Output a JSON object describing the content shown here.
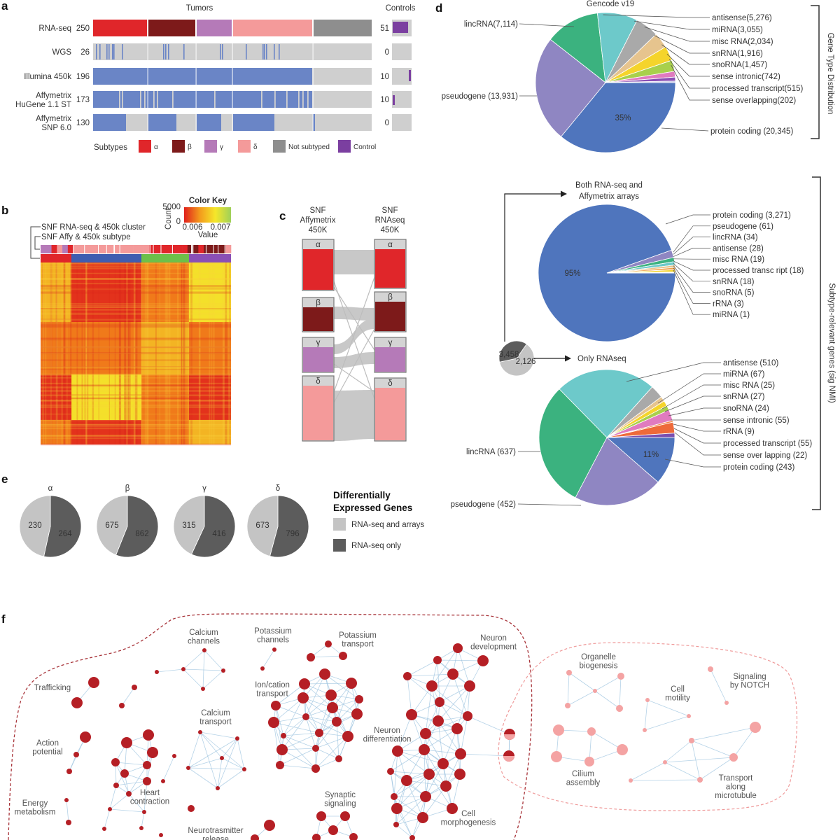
{
  "panel_labels": {
    "a": "a",
    "b": "b",
    "c": "c",
    "d": "d",
    "e": "e",
    "f": "f"
  },
  "colors": {
    "alpha": "#e0262a",
    "beta": "#7d1a1a",
    "gamma": "#b57ab8",
    "delta": "#f49a9a",
    "not_subtyped": "#8e8e8e",
    "control": "#7b3fa0",
    "assay_present": "#6a85c6",
    "assay_absent": "#cfcfcf",
    "cluster_1": "#e0262a",
    "cluster_2": "#3f5db0",
    "cluster_3": "#6cc04a",
    "cluster_4": "#8a4fb5",
    "network_dark": "#b51f25",
    "network_light": "#f4a3a3",
    "network_edge": "#9cc3df",
    "rna_seq_and_arrays": "#c4c4c4",
    "rna_seq_only": "#5c5c5c"
  },
  "panel_a": {
    "tumors_title": "Tumors",
    "controls_title": "Controls",
    "rows": [
      {
        "name_lines": [
          "RNA-seq"
        ],
        "count": "250",
        "control_count": "51"
      },
      {
        "name_lines": [
          "WGS"
        ],
        "count": "26",
        "control_count": "0"
      },
      {
        "name_lines": [
          "Illumina 450k"
        ],
        "count": "196",
        "control_count": "10"
      },
      {
        "name_lines": [
          "Affymetrix",
          "HuGene 1.1 ST"
        ],
        "count": "173",
        "control_count": "10"
      },
      {
        "name_lines": [
          "Affymetrix",
          "SNP 6.0"
        ],
        "count": "130",
        "control_count": "0"
      }
    ],
    "legend": {
      "title": "Subtypes",
      "items": [
        {
          "label": "α",
          "color": "#e0262a"
        },
        {
          "label": "β",
          "color": "#7d1a1a"
        },
        {
          "label": "γ",
          "color": "#b57ab8"
        },
        {
          "label": "δ",
          "color": "#f49a9a"
        },
        {
          "label": "Not subtyped",
          "color": "#8e8e8e"
        },
        {
          "label": "Control",
          "color": "#7b3fa0"
        }
      ]
    }
  },
  "panel_b": {
    "row_labels": [
      "SNF RNA-seq & 450k cluster",
      "SNF Affy & 450k subtype"
    ],
    "color_key": {
      "title": "Color Key",
      "y_ticks": [
        "5000",
        "0"
      ],
      "y_label": "Count",
      "x_ticks": [
        "0.006",
        "0.007"
      ],
      "x_label": "Value",
      "gradient": [
        "#e0201c",
        "#f39a1c",
        "#f5e72a",
        "#9fd05a"
      ]
    }
  },
  "panel_c": {
    "left_title": [
      "SNF",
      "Affymetrix",
      "450K"
    ],
    "right_title": [
      "SNF",
      "RNAseq",
      "450K"
    ],
    "groups": [
      "α",
      "β",
      "γ",
      "δ"
    ]
  },
  "panel_e": {
    "legend_title": [
      "Differentially",
      "Expressed Genes"
    ],
    "legend_items": [
      "RNA-seq and arrays",
      "RNA-seq only"
    ]
  },
  "panel_d": {
    "gencode_title": "Gencode v19",
    "bracket_top": "Gene Type Distribution",
    "bracket_bottom": "Subtype-relevant genes (sig NMI)",
    "both_title": [
      "Both RNA-seq and",
      "Affymetrix arrays"
    ],
    "only_title": "Only RNAseq"
  },
  "chart_data": [
    {
      "type": "pie",
      "title": "Gencode v19",
      "center_label": "35%",
      "labels": [
        "protein coding (20,345)",
        "pseudogene (13,931)",
        "lincRNA(7,114)",
        "antisense(5,276)",
        "miRNA(3,055)",
        "misc RNA(2,034)",
        "snRNA(1,916)",
        "snoRNA(1,457)",
        "sense intronic(742)",
        "processed transcript(515)",
        "sense overlapping(202)"
      ],
      "categories": [
        "protein coding",
        "pseudogene",
        "lincRNA",
        "antisense",
        "miRNA",
        "misc RNA",
        "snRNA",
        "snoRNA",
        "sense intronic",
        "processed transcript",
        "sense overlapping"
      ],
      "values": [
        20345,
        13931,
        7114,
        5276,
        3055,
        2034,
        1916,
        1457,
        742,
        515,
        202
      ],
      "colors": [
        "#4f75bd",
        "#8f86c2",
        "#3bb27f",
        "#6dc9ca",
        "#a9a9a9",
        "#e6c48e",
        "#f5d42b",
        "#a8d04c",
        "#e07bbf",
        "#8a4fb5",
        "#c9c9e6"
      ]
    },
    {
      "type": "pie",
      "title": "Both RNA-seq and Affymetrix arrays",
      "center_label": "95%",
      "labels": [
        "protein coding (3,271)",
        "pseudogene (61)",
        "lincRNA (34)",
        "antisense (28)",
        "misc RNA (19)",
        "processed transc ript (18)",
        "snRNA (18)",
        "snoRNA (5)",
        "rRNA (3)",
        "miRNA (1)"
      ],
      "categories": [
        "protein coding",
        "pseudogene",
        "lincRNA",
        "antisense",
        "misc RNA",
        "processed transcript",
        "snRNA",
        "snoRNA",
        "rRNA",
        "miRNA"
      ],
      "values": [
        3271,
        61,
        34,
        28,
        19,
        18,
        18,
        5,
        3,
        1
      ],
      "colors": [
        "#4f75bd",
        "#8f86c2",
        "#3bb27f",
        "#6dc9ca",
        "#e6c48e",
        "#f0a24a",
        "#f5d42b",
        "#a8d04c",
        "#f07a4a",
        "#d0453a"
      ]
    },
    {
      "type": "pie",
      "title": "Only RNAseq",
      "center_label": "11%",
      "labels": [
        "protein coding (243)",
        "pseudogene (452)",
        "lincRNA (637)",
        "antisense (510)",
        "miRNA (67)",
        "misc RNA (25)",
        "snRNA (27)",
        "snoRNA (24)",
        "sense intronic (55)",
        "rRNA (9)",
        "processed transcript (55)",
        "sense over lapping (22)"
      ],
      "categories": [
        "protein coding",
        "pseudogene",
        "lincRNA",
        "antisense",
        "miRNA",
        "misc RNA",
        "snRNA",
        "snoRNA",
        "sense intronic",
        "rRNA",
        "processed transcript",
        "sense overlapping"
      ],
      "values": [
        243,
        452,
        637,
        510,
        67,
        25,
        27,
        24,
        55,
        9,
        55,
        22
      ],
      "colors": [
        "#4f75bd",
        "#8f86c2",
        "#3bb27f",
        "#6dc9ca",
        "#a9a9a9",
        "#e6c48e",
        "#f5d42b",
        "#a8d04c",
        "#e07bbf",
        "#f08a50",
        "#ee6a3a",
        "#7b4fb0"
      ]
    },
    {
      "type": "pie",
      "title": "",
      "labels": [
        "3,458",
        "2,126"
      ],
      "values": [
        3458,
        2126
      ],
      "colors": [
        "#c4c4c4",
        "#5c5c5c"
      ]
    },
    {
      "type": "pie",
      "title": "Differentially Expressed Genes",
      "subtypes": [
        "α",
        "β",
        "γ",
        "δ"
      ],
      "series": [
        {
          "name": "RNA-seq and arrays",
          "values": [
            230,
            675,
            315,
            673
          ]
        },
        {
          "name": "RNA-seq only",
          "values": [
            264,
            862,
            416,
            796
          ]
        }
      ]
    }
  ],
  "network": {
    "labels": [
      {
        "lines": [
          "Trafficking"
        ]
      },
      {
        "lines": [
          "Calcium",
          "channels"
        ]
      },
      {
        "lines": [
          "Potassium",
          "channels"
        ]
      },
      {
        "lines": [
          "Potassium",
          "transport"
        ]
      },
      {
        "lines": [
          "Neuron",
          "development"
        ]
      },
      {
        "lines": [
          "Ion/cation",
          "transport"
        ]
      },
      {
        "lines": [
          "Calcium",
          "transport"
        ]
      },
      {
        "lines": [
          "Action",
          "potential"
        ]
      },
      {
        "lines": [
          "Neuron",
          "differentiation"
        ]
      },
      {
        "lines": [
          "Heart",
          "contraction"
        ]
      },
      {
        "lines": [
          "Energy",
          "metabolism"
        ]
      },
      {
        "lines": [
          "Synaptic",
          "signaling"
        ]
      },
      {
        "lines": [
          "Neurotrasmitter",
          "release"
        ]
      },
      {
        "lines": [
          "Cell",
          "morphogenesis"
        ]
      },
      {
        "lines": [
          "Organelle",
          "biogenesis"
        ]
      },
      {
        "lines": [
          "Cell",
          "motility"
        ]
      },
      {
        "lines": [
          "Signaling",
          "by NOTCH"
        ]
      },
      {
        "lines": [
          "Cilium",
          "assembly"
        ]
      },
      {
        "lines": [
          "Transport",
          "along",
          "microtubule"
        ]
      }
    ]
  }
}
